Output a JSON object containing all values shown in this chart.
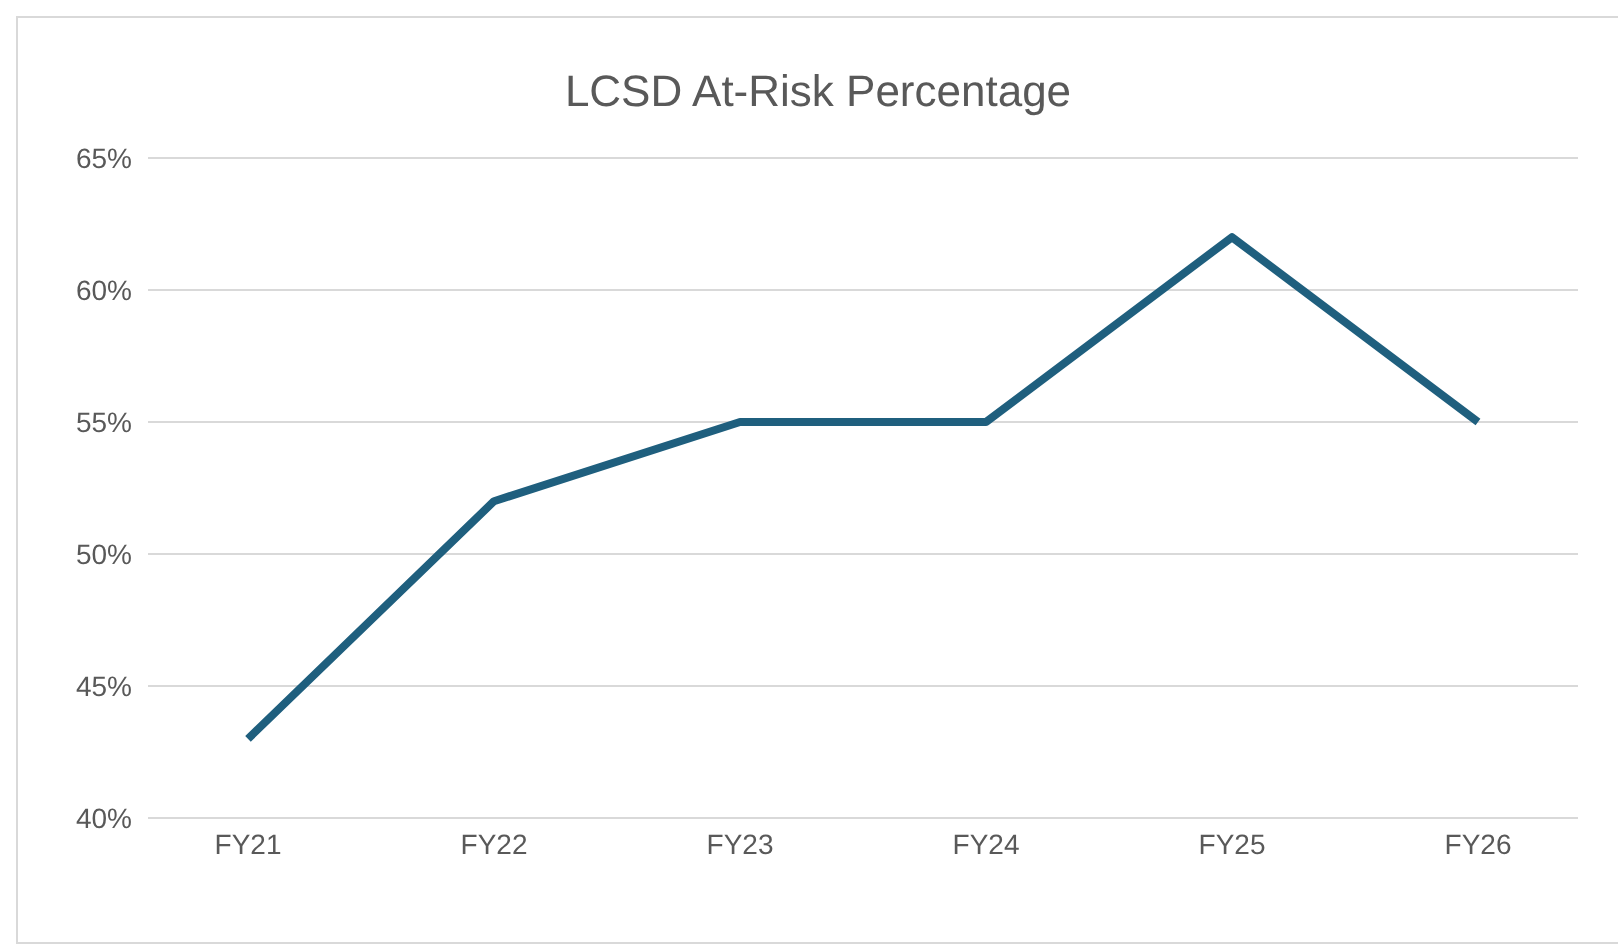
{
  "chart_data": {
    "type": "line",
    "title": "LCSD At-Risk Percentage",
    "categories": [
      "FY21",
      "FY22",
      "FY23",
      "FY24",
      "FY25",
      "FY26"
    ],
    "series": [
      {
        "color": "#1f5f7e",
        "values": [
          43,
          52,
          55,
          55,
          62,
          55
        ]
      }
    ],
    "ylim": [
      40,
      65
    ],
    "yticks": [
      {
        "value": 40,
        "label": "40%"
      },
      {
        "value": 45,
        "label": "45%"
      },
      {
        "value": 50,
        "label": "50%"
      },
      {
        "value": 55,
        "label": "55%"
      },
      {
        "value": 60,
        "label": "60%"
      },
      {
        "value": 65,
        "label": "65%"
      }
    ],
    "grid": "y",
    "marker": "none",
    "line_style": "solid",
    "legend": false
  }
}
